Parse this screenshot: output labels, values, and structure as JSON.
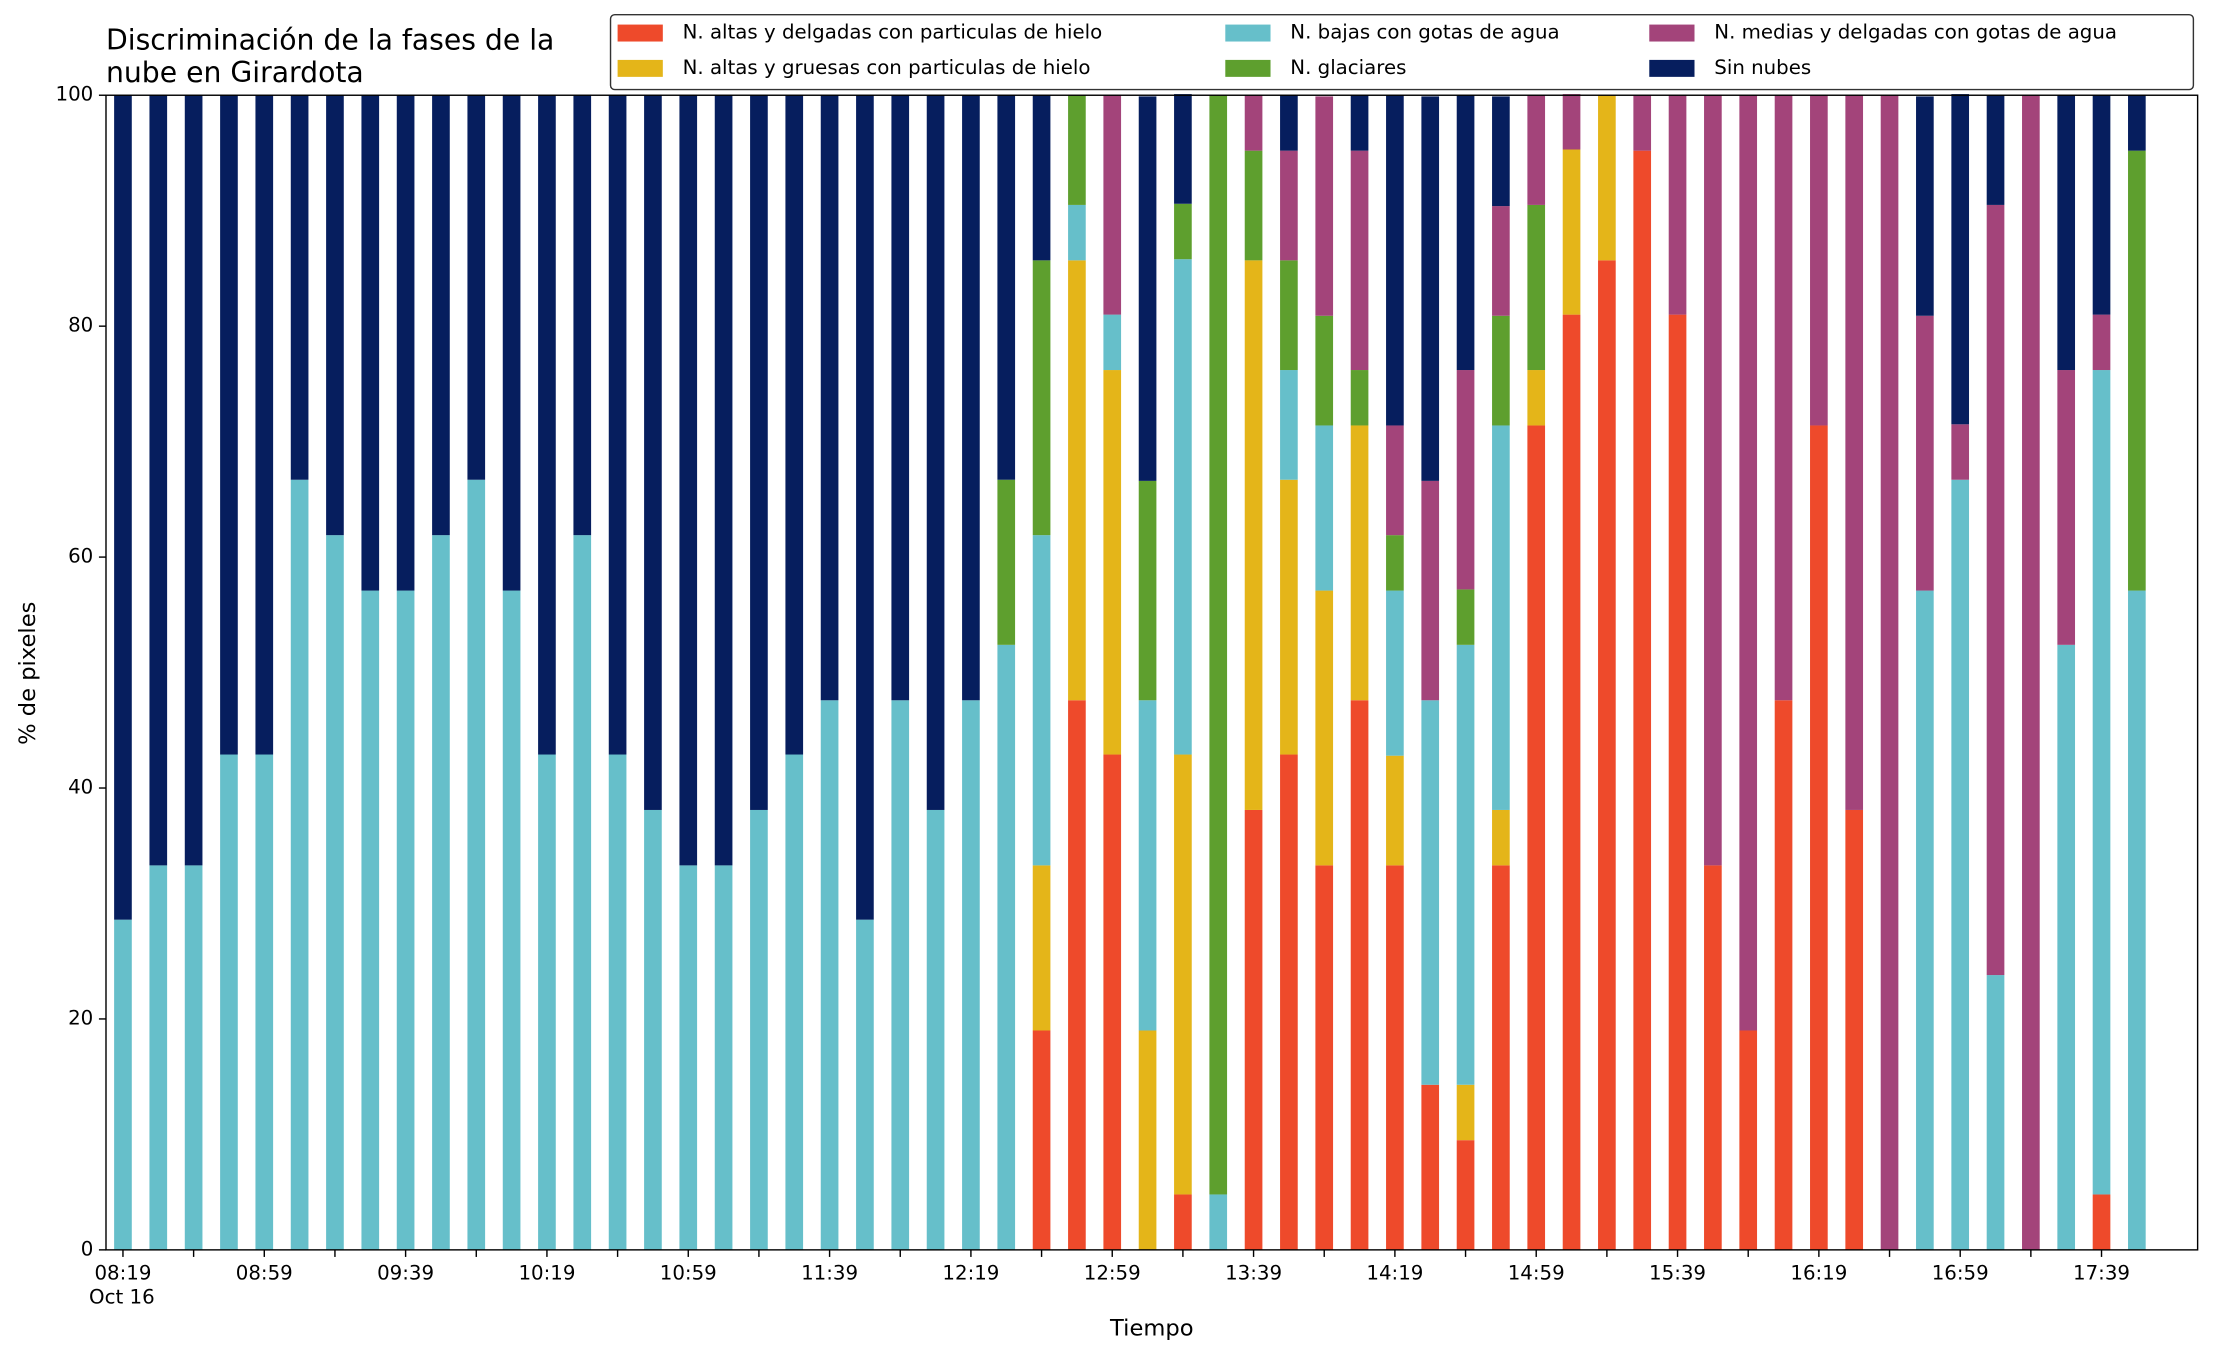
{
  "chart_data": {
    "type": "stacked_bar",
    "title": [
      "Discriminación de la fases de la",
      "nube en Girardota"
    ],
    "x_label": "Tiempo",
    "y_label": "% de pixeles",
    "x_sublabel": "Oct 16",
    "categories": [
      "08:19",
      null,
      null,
      null,
      "08:59",
      null,
      null,
      null,
      "09:39",
      null,
      null,
      null,
      "10:19",
      null,
      null,
      null,
      "10:59",
      null,
      null,
      null,
      "11:39",
      null,
      null,
      null,
      "12:19",
      null,
      null,
      null,
      "12:59",
      null,
      null,
      null,
      "13:39",
      null,
      null,
      null,
      "14:19",
      null,
      null,
      null,
      "14:59",
      null,
      null,
      null,
      "15:39",
      null,
      null,
      null,
      "16:19",
      null,
      null,
      null,
      "16:59",
      null,
      null,
      null,
      "17:39",
      null
    ],
    "ylim": [
      0,
      100
    ],
    "yticks": [
      0,
      20,
      40,
      60,
      80,
      100
    ],
    "legend_position": "top",
    "series": [
      {
        "name": "N. altas y delgadas con particulas de hielo",
        "color": "#ee4a2b",
        "values": [
          0,
          0,
          0,
          0,
          0,
          0,
          0,
          0,
          0,
          0,
          0,
          0,
          0,
          0,
          0,
          0,
          0,
          0,
          0,
          0,
          0,
          0,
          0,
          0,
          0,
          0,
          19,
          47.6,
          42.9,
          0,
          4.8,
          0,
          38.1,
          42.9,
          33.3,
          47.6,
          33.3,
          14.3,
          9.5,
          33.3,
          71.4,
          81,
          85.7,
          95.2,
          81,
          33.3,
          19,
          47.6,
          71.4,
          38.1,
          0,
          0,
          0,
          0,
          0,
          0,
          4.8,
          0
        ]
      },
      {
        "name": "N. altas y gruesas con particulas de hielo",
        "color": "#e4b519",
        "values": [
          0,
          0,
          0,
          0,
          0,
          0,
          0,
          0,
          0,
          0,
          0,
          0,
          0,
          0,
          0,
          0,
          0,
          0,
          0,
          0,
          0,
          0,
          0,
          0,
          0,
          0,
          14.3,
          38.1,
          33.3,
          19,
          38.1,
          0,
          47.6,
          23.8,
          23.8,
          23.8,
          9.5,
          0,
          4.8,
          4.8,
          4.8,
          14.3,
          14.3,
          0,
          0,
          0,
          0,
          0,
          0,
          0,
          0,
          0,
          0,
          0,
          0,
          0,
          0,
          0
        ]
      },
      {
        "name": "N. bajas con gotas de agua",
        "color": "#66bfca",
        "values": [
          28.6,
          33.3,
          33.3,
          42.9,
          42.9,
          66.7,
          61.9,
          57.1,
          57.1,
          61.9,
          66.7,
          57.1,
          42.9,
          61.9,
          42.9,
          38.1,
          33.3,
          33.3,
          38.1,
          42.9,
          47.6,
          28.6,
          47.6,
          38.1,
          47.6,
          52.4,
          28.6,
          4.8,
          4.8,
          28.6,
          42.9,
          4.8,
          0,
          9.5,
          14.3,
          0,
          14.3,
          33.3,
          38.1,
          33.3,
          0,
          0,
          0,
          0,
          0,
          0,
          0,
          0,
          0,
          0,
          0,
          57.1,
          66.7,
          23.8,
          0,
          52.4,
          71.4,
          57.1
        ]
      },
      {
        "name": "N. glaciares",
        "color": "#5e9f2e",
        "values": [
          0,
          0,
          0,
          0,
          0,
          0,
          0,
          0,
          0,
          0,
          0,
          0,
          0,
          0,
          0,
          0,
          0,
          0,
          0,
          0,
          0,
          0,
          0,
          0,
          0,
          14.3,
          23.8,
          9.5,
          0,
          19,
          4.8,
          95.2,
          9.5,
          9.5,
          9.5,
          4.8,
          4.8,
          0,
          4.8,
          9.5,
          14.3,
          0,
          0,
          0,
          0,
          0,
          0,
          0,
          0,
          0,
          0,
          0,
          0,
          0,
          0,
          0,
          0,
          38.1
        ]
      },
      {
        "name": "N. medias y delgadas con gotas de agua",
        "color": "#a3447a",
        "values": [
          0,
          0,
          0,
          0,
          0,
          0,
          0,
          0,
          0,
          0,
          0,
          0,
          0,
          0,
          0,
          0,
          0,
          0,
          0,
          0,
          0,
          0,
          0,
          0,
          0,
          0,
          0,
          0,
          19,
          0,
          0,
          0,
          4.8,
          9.5,
          19,
          19,
          9.5,
          19,
          19,
          9.5,
          9.5,
          4.8,
          0,
          4.8,
          19,
          66.7,
          81,
          52.4,
          28.6,
          61.9,
          100,
          23.8,
          4.8,
          66.7,
          100,
          23.8,
          4.8,
          0
        ]
      },
      {
        "name": "Sin nubes",
        "color": "#061e5e",
        "values": [
          71.4,
          66.7,
          66.7,
          57.1,
          57.1,
          33.3,
          38.1,
          42.9,
          42.9,
          38.1,
          33.3,
          42.9,
          57.1,
          38.1,
          57.1,
          61.9,
          66.7,
          66.7,
          61.9,
          57.1,
          52.4,
          71.4,
          52.4,
          61.9,
          52.4,
          33.3,
          14.3,
          0,
          0,
          33.3,
          9.5,
          0,
          0,
          4.8,
          0,
          4.8,
          28.6,
          33.3,
          23.8,
          9.5,
          0,
          0,
          0,
          0,
          0,
          0,
          0,
          0,
          0,
          0,
          0,
          19,
          28.6,
          9.5,
          0,
          23.8,
          19,
          4.8
        ]
      }
    ]
  }
}
